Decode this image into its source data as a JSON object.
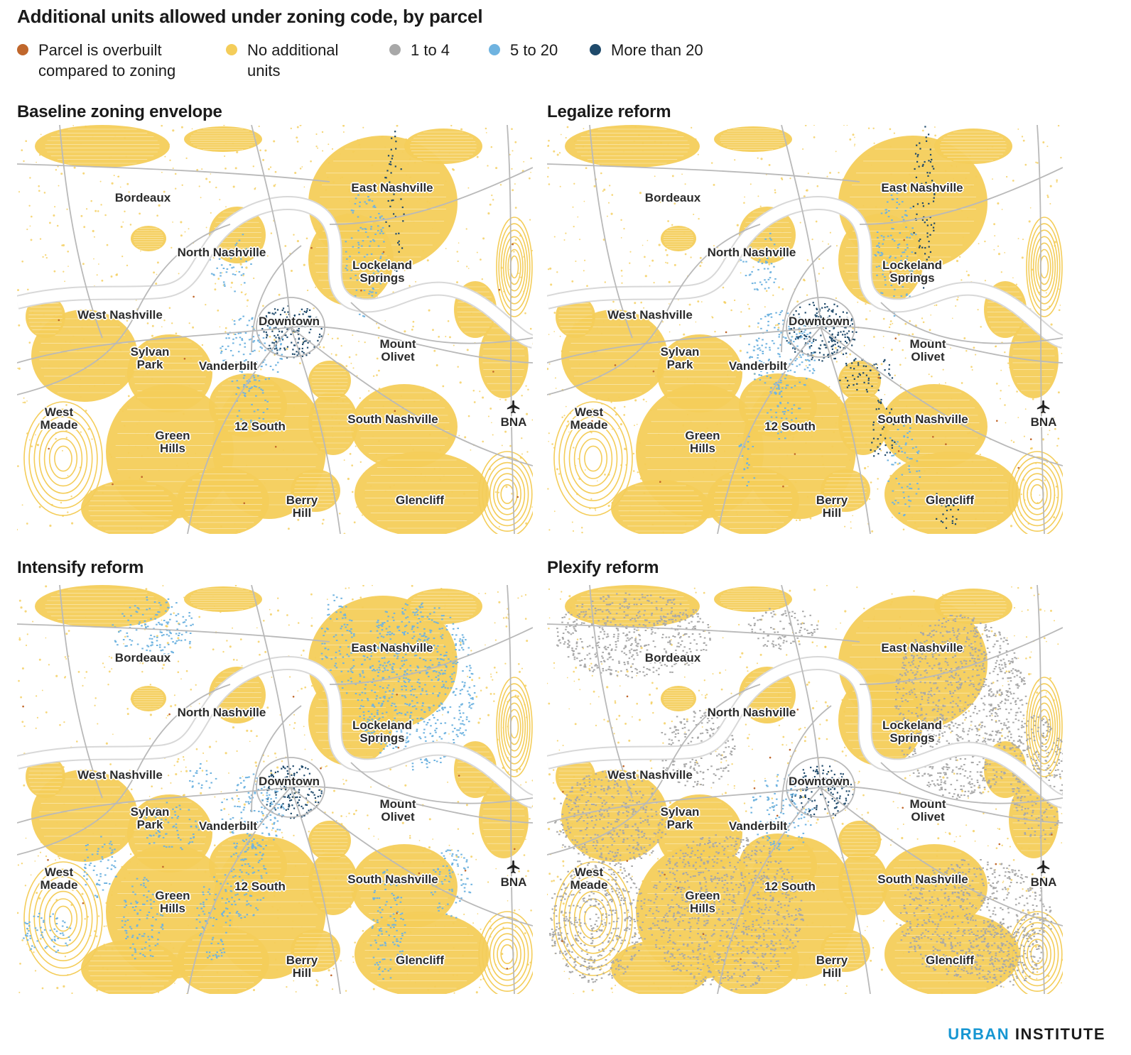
{
  "title": "Additional units allowed under zoning code, by parcel",
  "legend": [
    {
      "lines": [
        "Parcel is overbuilt",
        "compared to zoning"
      ],
      "color": "#c0672c"
    },
    {
      "lines": [
        "No additional",
        "units"
      ],
      "color": "#f4cd5a"
    },
    {
      "lines": [
        "1 to 4"
      ],
      "color": "#a8a8a8"
    },
    {
      "lines": [
        "5 to 20"
      ],
      "color": "#6fb3e0"
    },
    {
      "lines": [
        "More than 20"
      ],
      "color": "#1f4a6b"
    }
  ],
  "panels": [
    {
      "title": "Baseline zoning envelope",
      "scenario": "baseline"
    },
    {
      "title": "Legalize reform",
      "scenario": "legalize"
    },
    {
      "title": "Intensify reform",
      "scenario": "intensify"
    },
    {
      "title": "Plexify reform",
      "scenario": "plexify"
    }
  ],
  "places": [
    {
      "id": "bordeaux",
      "lines": [
        "Bordeaux"
      ]
    },
    {
      "id": "east-nashville",
      "lines": [
        "East Nashville"
      ]
    },
    {
      "id": "north-nashville",
      "lines": [
        "North Nashville"
      ]
    },
    {
      "id": "lockeland-springs",
      "lines": [
        "Lockeland",
        "Springs"
      ]
    },
    {
      "id": "west-nashville",
      "lines": [
        "West Nashville"
      ]
    },
    {
      "id": "downtown",
      "lines": [
        "Downtown"
      ]
    },
    {
      "id": "mount-olivet",
      "lines": [
        "Mount",
        "Olivet"
      ]
    },
    {
      "id": "sylvan-park",
      "lines": [
        "Sylvan",
        "Park"
      ]
    },
    {
      "id": "vanderbilt",
      "lines": [
        "Vanderbilt"
      ]
    },
    {
      "id": "west-meade",
      "lines": [
        "West",
        "Meade"
      ]
    },
    {
      "id": "12-south",
      "lines": [
        "12 South"
      ]
    },
    {
      "id": "south-nashville",
      "lines": [
        "South Nashville"
      ]
    },
    {
      "id": "bna",
      "lines": [
        "BNA"
      ]
    },
    {
      "id": "green-hills",
      "lines": [
        "Green",
        "Hills"
      ]
    },
    {
      "id": "berry-hill",
      "lines": [
        "Berry",
        "Hill"
      ]
    },
    {
      "id": "glencliff",
      "lines": [
        "Glencliff"
      ]
    }
  ],
  "airport_icon": "airplane-icon",
  "brand": {
    "part1": "URBAN",
    "part2": "INSTITUTE"
  }
}
